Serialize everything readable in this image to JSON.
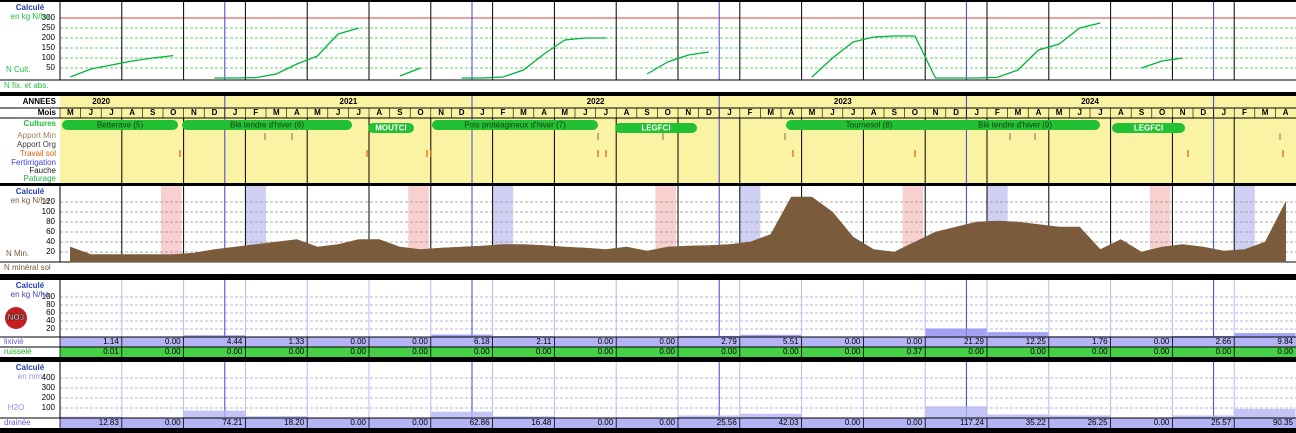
{
  "timeline": {
    "years_header": "ANNEES",
    "months_header": "Mois",
    "row_labels": [
      "Cultures",
      "Apport Min",
      "Apport Org",
      "Travail sol",
      "Fertirrigation",
      "Fauche",
      "Paturage"
    ],
    "years": [
      "2020",
      "2021",
      "2022",
      "2023",
      "2024"
    ],
    "months": [
      "M",
      "J",
      "J",
      "A",
      "S",
      "O",
      "N",
      "D",
      "J",
      "F",
      "M",
      "A",
      "M",
      "J",
      "J",
      "A",
      "S",
      "O",
      "N",
      "D",
      "J",
      "F",
      "M",
      "A",
      "M",
      "J",
      "J",
      "A",
      "S",
      "O",
      "N",
      "D",
      "J",
      "F",
      "M",
      "A",
      "M",
      "J",
      "J",
      "A",
      "S",
      "O",
      "N",
      "D",
      "J",
      "F",
      "M",
      "A",
      "M",
      "J",
      "J",
      "A",
      "S",
      "O",
      "N",
      "D",
      "J",
      "F",
      "M",
      "A"
    ],
    "crops": [
      "Betterave (5)",
      "Blé tendre d'hiver (6)",
      "MOUTCI",
      "Pois protéagineux d'hiver (7)",
      "LEGFCI",
      "Tournesol (8)",
      "Blé tendre d'hiver (9)",
      "LEGFCI"
    ]
  },
  "chart_data": [
    {
      "type": "line",
      "title": "Calculé",
      "subtitle": "en kg N/ha",
      "label": "N Cult.",
      "footer": "N fix. et abs.",
      "ylim": [
        0,
        340
      ],
      "yticks": [
        50,
        100,
        150,
        200,
        250,
        300
      ],
      "grid": true,
      "series": [
        {
          "color": "#00b43c",
          "values": [
            5,
            45,
            65,
            85,
            100,
            112,
            null,
            0,
            0,
            2,
            20,
            70,
            110,
            220,
            250,
            null,
            10,
            50,
            null,
            0,
            0,
            5,
            40,
            120,
            190,
            200,
            200,
            null,
            20,
            80,
            115,
            130,
            null,
            null,
            null,
            null,
            5,
            100,
            180,
            205,
            210,
            210,
            0,
            0,
            0,
            3,
            40,
            140,
            170,
            250,
            275,
            null,
            50,
            85,
            100,
            null,
            null,
            null,
            null,
            null
          ]
        }
      ]
    },
    {
      "type": "area",
      "title": "Calculé",
      "subtitle": "en kg N/ha",
      "label": "N Min.",
      "footer": "N minéral sol",
      "ylim": [
        0,
        148
      ],
      "yticks": [
        20,
        40,
        60,
        80,
        100,
        120
      ],
      "grid": true,
      "series": [
        {
          "color": "#7a5c3c",
          "values": [
            30,
            15,
            15,
            15,
            15,
            15,
            18,
            25,
            30,
            35,
            40,
            45,
            30,
            35,
            45,
            45,
            30,
            25,
            28,
            30,
            32,
            35,
            35,
            33,
            30,
            28,
            25,
            30,
            22,
            30,
            32,
            33,
            35,
            40,
            55,
            130,
            130,
            100,
            50,
            25,
            20,
            40,
            60,
            70,
            80,
            82,
            80,
            75,
            70,
            70,
            25,
            45,
            20,
            30,
            35,
            30,
            22,
            25,
            40,
            120
          ]
        }
      ]
    },
    {
      "type": "bar",
      "title": "Calculé",
      "subtitle": "en kg N/ha",
      "label": "NO3",
      "ylim": [
        0,
        135
      ],
      "yticks": [
        20,
        40,
        60,
        80,
        100
      ],
      "grid": true,
      "series": [
        {
          "name": "lixivié",
          "color": "#8c8cf0",
          "values": [
            1.14,
            0,
            4.44,
            1.33,
            0,
            0,
            6.18,
            2.11,
            0,
            0,
            2.79,
            5.51,
            0,
            0,
            21.29,
            12.25,
            1.76,
            0,
            2.66,
            9.84
          ],
          "value_labels": [
            "1.14",
            "0.00",
            "4.44",
            "1.33",
            "0.00",
            "0.00",
            "6.18",
            "2.11",
            "0.00",
            "0.00",
            "2.79",
            "5.51",
            "0.00",
            "0.00",
            "21.29",
            "12.25",
            "1.76",
            "0.00",
            "2.66",
            "9.84"
          ]
        },
        {
          "name": "ruisselé",
          "color": "#46d046",
          "values": [
            0.01,
            0,
            0,
            0,
            0,
            0,
            0,
            0,
            0,
            0,
            0,
            0,
            0,
            0.37,
            0,
            0,
            0,
            0,
            0,
            0
          ],
          "value_labels": [
            "0.01",
            "0.00",
            "0.00",
            "0.00",
            "0.00",
            "0.00",
            "0.00",
            "0.00",
            "0.00",
            "0.00",
            "0.00",
            "0.00",
            "0.00",
            "0.37",
            "0.00",
            "0.00",
            "0.00",
            "0.00",
            "0.00",
            "0.00"
          ]
        }
      ]
    },
    {
      "type": "bar",
      "title": "Calculé",
      "subtitle": "en mm",
      "label": "H2O",
      "ylim": [
        0,
        540
      ],
      "yticks": [
        100,
        200,
        300,
        400
      ],
      "grid": true,
      "series": [
        {
          "name": "drainée",
          "color": "#b4b4f4",
          "values": [
            12.83,
            0,
            74.21,
            18.2,
            0,
            0,
            62.86,
            16.48,
            0,
            0,
            25.56,
            42.03,
            0,
            0,
            117.24,
            35.22,
            26.25,
            0,
            25.57,
            90.35
          ],
          "value_labels": [
            "12.83",
            "0.00",
            "74.21",
            "18.20",
            "0.00",
            "0.00",
            "62.86",
            "16.48",
            "0.00",
            "0.00",
            "25.56",
            "42.03",
            "0.00",
            "0.00",
            "117.24",
            "35.22",
            "26.25",
            "0.00",
            "25.57",
            "90.35"
          ]
        }
      ]
    }
  ]
}
